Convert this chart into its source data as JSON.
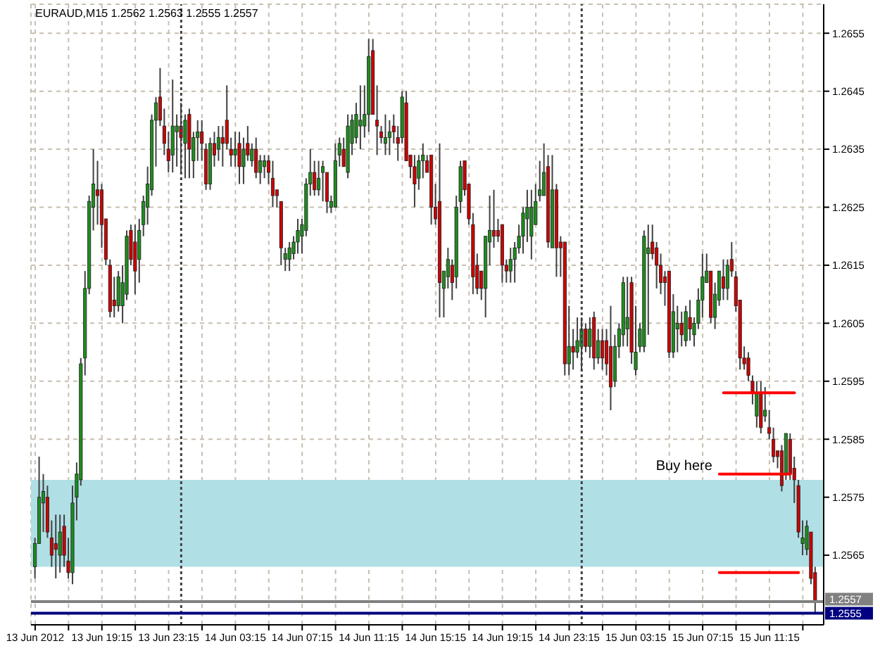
{
  "chart_data": {
    "type": "candlestick",
    "title": "EURAUD,M15 1.2562 1.2563 1.2555 1.2557",
    "x": [
      "2012-06-13T15:15",
      "2012-06-13T15:30",
      "2012-06-13T15:45",
      "2012-06-13T16:00",
      "2012-06-13T16:15",
      "2012-06-13T16:30",
      "2012-06-13T16:45",
      "2012-06-13T17:00",
      "2012-06-13T17:15",
      "2012-06-13T17:30",
      "2012-06-13T17:45",
      "2012-06-13T18:00",
      "2012-06-13T18:15",
      "2012-06-13T18:30",
      "2012-06-13T18:45",
      "2012-06-13T19:00",
      "2012-06-13T19:15",
      "2012-06-13T19:30",
      "2012-06-13T19:45",
      "2012-06-13T20:00",
      "2012-06-13T20:15",
      "2012-06-13T20:30",
      "2012-06-13T20:45",
      "2012-06-13T21:00",
      "2012-06-13T21:15",
      "2012-06-13T21:30",
      "2012-06-13T21:45",
      "2012-06-13T22:00",
      "2012-06-13T22:15",
      "2012-06-13T22:30",
      "2012-06-13T22:45",
      "2012-06-13T23:00",
      "2012-06-13T23:15",
      "2012-06-13T23:30",
      "2012-06-13T23:45",
      "2012-06-14T00:00",
      "2012-06-14T00:15",
      "2012-06-14T00:30",
      "2012-06-14T00:45",
      "2012-06-14T01:00",
      "2012-06-14T01:15",
      "2012-06-14T01:30",
      "2012-06-14T01:45",
      "2012-06-14T02:00",
      "2012-06-14T02:15",
      "2012-06-14T02:30",
      "2012-06-14T02:45",
      "2012-06-14T03:00",
      "2012-06-14T03:15",
      "2012-06-14T03:30",
      "2012-06-14T03:45",
      "2012-06-14T04:00",
      "2012-06-14T04:15",
      "2012-06-14T04:30",
      "2012-06-14T04:45",
      "2012-06-14T05:00",
      "2012-06-14T05:15",
      "2012-06-14T05:30",
      "2012-06-14T05:45",
      "2012-06-14T06:00",
      "2012-06-14T06:15",
      "2012-06-14T06:30",
      "2012-06-14T06:45",
      "2012-06-14T07:00",
      "2012-06-14T07:15",
      "2012-06-14T07:30",
      "2012-06-14T07:45",
      "2012-06-14T08:00",
      "2012-06-14T08:15",
      "2012-06-14T08:30",
      "2012-06-14T08:45",
      "2012-06-14T09:00",
      "2012-06-14T09:15",
      "2012-06-14T09:30",
      "2012-06-14T09:45",
      "2012-06-14T10:00",
      "2012-06-14T10:15",
      "2012-06-14T10:30",
      "2012-06-14T10:45",
      "2012-06-14T11:00",
      "2012-06-14T11:15",
      "2012-06-14T11:30",
      "2012-06-14T11:45",
      "2012-06-14T12:00",
      "2012-06-14T12:15",
      "2012-06-14T12:30",
      "2012-06-14T12:45",
      "2012-06-14T13:00",
      "2012-06-14T13:15",
      "2012-06-14T13:30",
      "2012-06-14T13:45",
      "2012-06-14T14:00",
      "2012-06-14T14:15",
      "2012-06-14T14:30",
      "2012-06-14T14:45",
      "2012-06-14T15:00",
      "2012-06-14T15:15",
      "2012-06-14T15:30",
      "2012-06-14T15:45",
      "2012-06-14T16:00",
      "2012-06-14T16:15",
      "2012-06-14T16:30",
      "2012-06-14T16:45",
      "2012-06-14T17:00",
      "2012-06-14T17:15",
      "2012-06-14T17:30",
      "2012-06-14T17:45",
      "2012-06-14T18:00",
      "2012-06-14T18:15",
      "2012-06-14T18:30",
      "2012-06-14T18:45",
      "2012-06-14T19:00",
      "2012-06-14T19:15",
      "2012-06-14T19:30",
      "2012-06-14T19:45",
      "2012-06-14T20:00",
      "2012-06-14T20:15",
      "2012-06-14T20:30",
      "2012-06-14T20:45",
      "2012-06-14T21:00",
      "2012-06-14T21:15",
      "2012-06-14T21:30",
      "2012-06-14T21:45",
      "2012-06-14T22:00",
      "2012-06-14T22:15",
      "2012-06-14T22:30",
      "2012-06-14T22:45",
      "2012-06-14T23:00",
      "2012-06-14T23:15",
      "2012-06-14T23:30",
      "2012-06-14T23:45",
      "2012-06-15T00:00",
      "2012-06-15T00:15",
      "2012-06-15T00:30",
      "2012-06-15T00:45",
      "2012-06-15T01:00",
      "2012-06-15T01:15",
      "2012-06-15T01:30",
      "2012-06-15T01:45",
      "2012-06-15T02:00",
      "2012-06-15T02:15",
      "2012-06-15T02:30",
      "2012-06-15T02:45",
      "2012-06-15T03:00",
      "2012-06-15T03:15",
      "2012-06-15T03:30",
      "2012-06-15T03:45",
      "2012-06-15T04:00",
      "2012-06-15T04:15",
      "2012-06-15T04:30",
      "2012-06-15T04:45",
      "2012-06-15T05:00",
      "2012-06-15T05:15",
      "2012-06-15T05:30",
      "2012-06-15T05:45",
      "2012-06-15T06:00",
      "2012-06-15T06:15",
      "2012-06-15T06:30",
      "2012-06-15T06:45",
      "2012-06-15T07:00",
      "2012-06-15T07:15",
      "2012-06-15T07:30",
      "2012-06-15T07:45",
      "2012-06-15T08:00",
      "2012-06-15T08:15",
      "2012-06-15T08:30",
      "2012-06-15T08:45",
      "2012-06-15T09:00",
      "2012-06-15T09:15",
      "2012-06-15T09:30",
      "2012-06-15T09:45",
      "2012-06-15T10:00",
      "2012-06-15T10:15",
      "2012-06-15T10:30",
      "2012-06-15T10:45",
      "2012-06-15T11:00",
      "2012-06-15T11:15",
      "2012-06-15T11:30",
      "2012-06-15T11:45",
      "2012-06-15T12:00",
      "2012-06-15T12:15",
      "2012-06-15T12:30",
      "2012-06-15T12:45",
      "2012-06-15T13:00",
      "2012-06-15T13:15",
      "2012-06-15T13:30",
      "2012-06-15T13:45",
      "2012-06-15T14:00"
    ],
    "ohlc": [
      [
        1.2563,
        1.2568,
        1.2561,
        1.2567
      ],
      [
        1.2567,
        1.2582,
        1.2567,
        1.2575
      ],
      [
        1.2574,
        1.2579,
        1.2569,
        1.2576
      ],
      [
        1.2575,
        1.2577,
        1.2568,
        1.2569
      ],
      [
        1.2568,
        1.2571,
        1.2563,
        1.2565
      ],
      [
        1.2567,
        1.2572,
        1.2561,
        1.2566
      ],
      [
        1.2565,
        1.2572,
        1.2562,
        1.2569
      ],
      [
        1.257,
        1.2572,
        1.2563,
        1.2565
      ],
      [
        1.2564,
        1.2568,
        1.2561,
        1.2562
      ],
      [
        1.2562,
        1.2577,
        1.256,
        1.2574
      ],
      [
        1.2575,
        1.2581,
        1.2571,
        1.2579
      ],
      [
        1.2578,
        1.2599,
        1.2577,
        1.2598
      ],
      [
        1.2599,
        1.2614,
        1.2596,
        1.2611
      ],
      [
        1.2611,
        1.2627,
        1.261,
        1.2626
      ],
      [
        1.2625,
        1.2635,
        1.2621,
        1.2629
      ],
      [
        1.2628,
        1.2633,
        1.2622,
        1.2627
      ],
      [
        1.2628,
        1.2629,
        1.2618,
        1.2622
      ],
      [
        1.2623,
        1.2623,
        1.2615,
        1.2616
      ],
      [
        1.2615,
        1.2616,
        1.2606,
        1.2607
      ],
      [
        1.2609,
        1.2613,
        1.2606,
        1.2608
      ],
      [
        1.2608,
        1.2614,
        1.2607,
        1.2613
      ],
      [
        1.2608,
        1.2615,
        1.2605,
        1.2612
      ],
      [
        1.261,
        1.2621,
        1.2609,
        1.262
      ],
      [
        1.2621,
        1.2622,
        1.2615,
        1.2616
      ],
      [
        1.2619,
        1.2622,
        1.261,
        1.2614
      ],
      [
        1.2616,
        1.2623,
        1.2612,
        1.2621
      ],
      [
        1.2622,
        1.2627,
        1.262,
        1.2626
      ],
      [
        1.2625,
        1.2632,
        1.2622,
        1.2629
      ],
      [
        1.2628,
        1.2641,
        1.2627,
        1.264
      ],
      [
        1.264,
        1.2644,
        1.2632,
        1.2643
      ],
      [
        1.2644,
        1.2649,
        1.2639,
        1.264
      ],
      [
        1.2639,
        1.2642,
        1.2634,
        1.2636
      ],
      [
        1.2635,
        1.2638,
        1.2631,
        1.2633
      ],
      [
        1.2634,
        1.2647,
        1.2631,
        1.2639
      ],
      [
        1.2638,
        1.2641,
        1.2632,
        1.2639
      ],
      [
        1.2639,
        1.2643,
        1.2631,
        1.2637
      ],
      [
        1.2636,
        1.2641,
        1.263,
        1.264
      ],
      [
        1.2641,
        1.2642,
        1.263,
        1.2635
      ],
      [
        1.2633,
        1.2638,
        1.263,
        1.2637
      ],
      [
        1.2637,
        1.264,
        1.2633,
        1.2638
      ],
      [
        1.2638,
        1.264,
        1.2633,
        1.2636
      ],
      [
        1.2635,
        1.2636,
        1.2628,
        1.2629
      ],
      [
        1.2629,
        1.2637,
        1.2628,
        1.2636
      ],
      [
        1.2636,
        1.2638,
        1.2632,
        1.2634
      ],
      [
        1.2635,
        1.2639,
        1.2633,
        1.2637
      ],
      [
        1.2637,
        1.2639,
        1.2632,
        1.2636
      ],
      [
        1.264,
        1.2646,
        1.2635,
        1.2636
      ],
      [
        1.2635,
        1.2637,
        1.2632,
        1.2634
      ],
      [
        1.2634,
        1.2638,
        1.2632,
        1.2635
      ],
      [
        1.2636,
        1.2638,
        1.2629,
        1.2632
      ],
      [
        1.2632,
        1.2637,
        1.2629,
        1.2635
      ],
      [
        1.2636,
        1.2639,
        1.2633,
        1.2634
      ],
      [
        1.2633,
        1.2636,
        1.2632,
        1.2635
      ],
      [
        1.2635,
        1.2637,
        1.263,
        1.2631
      ],
      [
        1.2631,
        1.2634,
        1.2629,
        1.2633
      ],
      [
        1.2632,
        1.2634,
        1.263,
        1.2633
      ],
      [
        1.2633,
        1.2634,
        1.2629,
        1.2631
      ],
      [
        1.263,
        1.2633,
        1.2625,
        1.2627
      ],
      [
        1.2628,
        1.2628,
        1.2625,
        1.2627
      ],
      [
        1.2626,
        1.2626,
        1.2615,
        1.2618
      ],
      [
        1.2616,
        1.2618,
        1.2614,
        1.2617
      ],
      [
        1.2616,
        1.2619,
        1.2614,
        1.2618
      ],
      [
        1.2617,
        1.262,
        1.2616,
        1.2619
      ],
      [
        1.2619,
        1.2623,
        1.2617,
        1.2621
      ],
      [
        1.262,
        1.2623,
        1.2617,
        1.2622
      ],
      [
        1.2621,
        1.263,
        1.262,
        1.2629
      ],
      [
        1.2629,
        1.2635,
        1.2627,
        1.2631
      ],
      [
        1.2631,
        1.2633,
        1.2627,
        1.2628
      ],
      [
        1.2628,
        1.2633,
        1.2627,
        1.263
      ],
      [
        1.2631,
        1.2633,
        1.2626,
        1.2632
      ],
      [
        1.2631,
        1.2631,
        1.2624,
        1.2626
      ],
      [
        1.2625,
        1.2627,
        1.2624,
        1.2626
      ],
      [
        1.2625,
        1.2636,
        1.2625,
        1.2633
      ],
      [
        1.2634,
        1.2637,
        1.2632,
        1.2636
      ],
      [
        1.2635,
        1.2637,
        1.2632,
        1.2632
      ],
      [
        1.2631,
        1.2641,
        1.263,
        1.2639
      ],
      [
        1.2636,
        1.2641,
        1.2634,
        1.264
      ],
      [
        1.2637,
        1.2643,
        1.2636,
        1.2641
      ],
      [
        1.2639,
        1.2646,
        1.2635,
        1.264
      ],
      [
        1.2639,
        1.2646,
        1.2637,
        1.2641
      ],
      [
        1.2641,
        1.2654,
        1.2638,
        1.2651
      ],
      [
        1.2652,
        1.2654,
        1.2641,
        1.2641
      ],
      [
        1.264,
        1.2646,
        1.2634,
        1.2639
      ],
      [
        1.2638,
        1.2639,
        1.2636,
        1.2637
      ],
      [
        1.2636,
        1.2641,
        1.2634,
        1.2637
      ],
      [
        1.2637,
        1.264,
        1.2634,
        1.2638
      ],
      [
        1.2639,
        1.2641,
        1.2636,
        1.2638
      ],
      [
        1.2637,
        1.2639,
        1.2633,
        1.2636
      ],
      [
        1.2637,
        1.2645,
        1.2636,
        1.2644
      ],
      [
        1.2643,
        1.2645,
        1.2633,
        1.2633
      ],
      [
        1.2634,
        1.2634,
        1.263,
        1.2632
      ],
      [
        1.2632,
        1.2634,
        1.2625,
        1.2629
      ],
      [
        1.263,
        1.2634,
        1.2628,
        1.2633
      ],
      [
        1.2633,
        1.2636,
        1.263,
        1.2634
      ],
      [
        1.2633,
        1.2634,
        1.2631,
        1.2631
      ],
      [
        1.2634,
        1.2634,
        1.2622,
        1.2625
      ],
      [
        1.2625,
        1.2629,
        1.2622,
        1.2623
      ],
      [
        1.2626,
        1.2636,
        1.2606,
        1.2612
      ],
      [
        1.2611,
        1.2614,
        1.2606,
        1.2614
      ],
      [
        1.2613,
        1.2618,
        1.2611,
        1.2616
      ],
      [
        1.2615,
        1.2616,
        1.2609,
        1.2612
      ],
      [
        1.2613,
        1.2627,
        1.2611,
        1.2625
      ],
      [
        1.2626,
        1.2633,
        1.2624,
        1.2632
      ],
      [
        1.2633,
        1.2633,
        1.2627,
        1.2628
      ],
      [
        1.2629,
        1.2629,
        1.2622,
        1.2623
      ],
      [
        1.2622,
        1.2624,
        1.261,
        1.2613
      ],
      [
        1.2615,
        1.2617,
        1.261,
        1.2611
      ],
      [
        1.2614,
        1.2614,
        1.2609,
        1.2611
      ],
      [
        1.2611,
        1.262,
        1.2606,
        1.262
      ],
      [
        1.2619,
        1.2627,
        1.2615,
        1.2621
      ],
      [
        1.2621,
        1.2628,
        1.2618,
        1.262
      ],
      [
        1.2621,
        1.2623,
        1.2619,
        1.262
      ],
      [
        1.2622,
        1.2622,
        1.2612,
        1.2615
      ],
      [
        1.2615,
        1.2616,
        1.2612,
        1.2614
      ],
      [
        1.2614,
        1.2618,
        1.2612,
        1.2616
      ],
      [
        1.2616,
        1.2619,
        1.2612,
        1.2618
      ],
      [
        1.2618,
        1.2622,
        1.2617,
        1.262
      ],
      [
        1.262,
        1.2625,
        1.2617,
        1.2624
      ],
      [
        1.2623,
        1.2628,
        1.2619,
        1.2625
      ],
      [
        1.262,
        1.2628,
        1.2616,
        1.2625
      ],
      [
        1.2622,
        1.2629,
        1.2622,
        1.2626
      ],
      [
        1.2627,
        1.2633,
        1.2626,
        1.2628
      ],
      [
        1.2627,
        1.2636,
        1.2627,
        1.2631
      ],
      [
        1.2632,
        1.2634,
        1.2618,
        1.2619
      ],
      [
        1.2618,
        1.2634,
        1.2618,
        1.2628
      ],
      [
        1.2628,
        1.2629,
        1.2613,
        1.2618
      ],
      [
        1.2619,
        1.262,
        1.2613,
        1.2618
      ],
      [
        1.2619,
        1.2619,
        1.2596,
        1.2598
      ],
      [
        1.2598,
        1.2608,
        1.2596,
        1.2601
      ],
      [
        1.2601,
        1.2604,
        1.2597,
        1.26
      ],
      [
        1.26,
        1.2606,
        1.2599,
        1.2602
      ],
      [
        1.2601,
        1.2606,
        1.2597,
        1.2604
      ],
      [
        1.2604,
        1.2605,
        1.26,
        1.2601
      ],
      [
        1.2601,
        1.2606,
        1.2599,
        1.2604
      ],
      [
        1.2606,
        1.2607,
        1.2597,
        1.2599
      ],
      [
        1.2599,
        1.2604,
        1.2598,
        1.2602
      ],
      [
        1.2602,
        1.2604,
        1.2597,
        1.2599
      ],
      [
        1.2602,
        1.2604,
        1.2596,
        1.2598
      ],
      [
        1.2601,
        1.2608,
        1.259,
        1.2594
      ],
      [
        1.2595,
        1.2603,
        1.2594,
        1.2601
      ],
      [
        1.2601,
        1.2605,
        1.2599,
        1.2604
      ],
      [
        1.2603,
        1.2613,
        1.2601,
        1.2612
      ],
      [
        1.2604,
        1.2613,
        1.2601,
        1.2606
      ],
      [
        1.2612,
        1.2613,
        1.2598,
        1.26
      ],
      [
        1.2597,
        1.2608,
        1.2596,
        1.26
      ],
      [
        1.2601,
        1.2605,
        1.26,
        1.2604
      ],
      [
        1.2601,
        1.2621,
        1.26,
        1.262
      ],
      [
        1.2617,
        1.2622,
        1.2603,
        1.2618
      ],
      [
        1.2619,
        1.2622,
        1.2616,
        1.2617
      ],
      [
        1.2618,
        1.2619,
        1.2611,
        1.2615
      ],
      [
        1.2615,
        1.2617,
        1.261,
        1.2612
      ],
      [
        1.2613,
        1.2614,
        1.2608,
        1.2612
      ],
      [
        1.2614,
        1.2614,
        1.2599,
        1.26
      ],
      [
        1.26,
        1.261,
        1.2599,
        1.2607
      ],
      [
        1.2604,
        1.2608,
        1.26,
        1.2605
      ],
      [
        1.2605,
        1.2607,
        1.2601,
        1.2603
      ],
      [
        1.2602,
        1.2608,
        1.2601,
        1.2607
      ],
      [
        1.2606,
        1.2609,
        1.2602,
        1.2604
      ],
      [
        1.2603,
        1.2606,
        1.2601,
        1.2605
      ],
      [
        1.2605,
        1.2611,
        1.2604,
        1.2609
      ],
      [
        1.2609,
        1.2617,
        1.2606,
        1.2613
      ],
      [
        1.2612,
        1.2617,
        1.2612,
        1.2614
      ],
      [
        1.2614,
        1.2614,
        1.2605,
        1.2606
      ],
      [
        1.2606,
        1.2612,
        1.2604,
        1.261
      ],
      [
        1.2609,
        1.2614,
        1.2608,
        1.2614
      ],
      [
        1.2613,
        1.2616,
        1.2609,
        1.2611
      ],
      [
        1.2611,
        1.2616,
        1.2609,
        1.2615
      ],
      [
        1.2616,
        1.2619,
        1.2613,
        1.2614
      ],
      [
        1.2613,
        1.2614,
        1.2607,
        1.2608
      ],
      [
        1.2609,
        1.2609,
        1.2597,
        1.2599
      ],
      [
        1.2599,
        1.2601,
        1.2597,
        1.2598
      ],
      [
        1.2599,
        1.26,
        1.2595,
        1.2596
      ],
      [
        1.2595,
        1.2596,
        1.2591,
        1.2593
      ],
      [
        1.2589,
        1.2595,
        1.2587,
        1.2593
      ],
      [
        1.2593,
        1.2595,
        1.2586,
        1.2587
      ],
      [
        1.2589,
        1.2594,
        1.2588,
        1.259
      ],
      [
        1.2587,
        1.259,
        1.2585,
        1.2586
      ],
      [
        1.2585,
        1.2587,
        1.2581,
        1.2582
      ],
      [
        1.2583,
        1.2583,
        1.258,
        1.2582
      ],
      [
        1.2583,
        1.2584,
        1.2576,
        1.2577
      ],
      [
        1.2579,
        1.2586,
        1.2578,
        1.2586
      ],
      [
        1.2585,
        1.2586,
        1.2578,
        1.2579
      ],
      [
        1.258,
        1.2582,
        1.2574,
        1.2578
      ],
      [
        1.2577,
        1.2578,
        1.2568,
        1.2569
      ],
      [
        1.2567,
        1.2571,
        1.2565,
        1.2568
      ],
      [
        1.2566,
        1.2571,
        1.2565,
        1.257
      ],
      [
        1.2569,
        1.2569,
        1.256,
        1.2561
      ],
      [
        1.2562,
        1.2563,
        1.2555,
        1.2557
      ]
    ],
    "colors": [
      "#1e8c1e",
      "#1e8c1e",
      "#1e8c1e",
      "#cc0000",
      "#cc0000",
      "#cc0000",
      "#1e8c1e",
      "#cc0000",
      "#cc0000",
      "#1e8c1e",
      "#1e8c1e",
      "#1e8c1e",
      "#1e8c1e",
      "#1e8c1e",
      "#1e8c1e",
      "#cc0000",
      "#cc0000",
      "#cc0000",
      "#cc0000",
      "#cc0000",
      "#1e8c1e",
      "#1e8c1e",
      "#1e8c1e",
      "#cc0000",
      "#cc0000",
      "#1e8c1e",
      "#1e8c1e",
      "#1e8c1e",
      "#1e8c1e",
      "#1e8c1e",
      "#cc0000",
      "#cc0000",
      "#cc0000",
      "#1e8c1e",
      "#1e8c1e",
      "#cc0000",
      "#1e8c1e",
      "#cc0000",
      "#1e8c1e",
      "#1e8c1e",
      "#cc0000",
      "#cc0000",
      "#1e8c1e",
      "#cc0000",
      "#1e8c1e",
      "#cc0000",
      "#cc0000",
      "#cc0000",
      "#1e8c1e",
      "#cc0000",
      "#1e8c1e",
      "#cc0000",
      "#1e8c1e",
      "#cc0000",
      "#1e8c1e",
      "#1e8c1e",
      "#cc0000",
      "#cc0000",
      "#cc0000",
      "#cc0000",
      "#1e8c1e",
      "#1e8c1e",
      "#1e8c1e",
      "#1e8c1e",
      "#1e8c1e",
      "#1e8c1e",
      "#1e8c1e",
      "#cc0000",
      "#1e8c1e",
      "#1e8c1e",
      "#cc0000",
      "#1e8c1e",
      "#1e8c1e",
      "#1e8c1e",
      "#cc0000",
      "#1e8c1e",
      "#1e8c1e",
      "#1e8c1e",
      "#1e8c1e",
      "#1e8c1e",
      "#1e8c1e",
      "#cc0000",
      "#cc0000",
      "#cc0000",
      "#1e8c1e",
      "#1e8c1e",
      "#cc0000",
      "#cc0000",
      "#1e8c1e",
      "#cc0000",
      "#cc0000",
      "#cc0000",
      "#1e8c1e",
      "#1e8c1e",
      "#cc0000",
      "#cc0000",
      "#cc0000",
      "#cc0000",
      "#1e8c1e",
      "#1e8c1e",
      "#cc0000",
      "#1e8c1e",
      "#1e8c1e",
      "#cc0000",
      "#cc0000",
      "#cc0000",
      "#cc0000",
      "#cc0000",
      "#1e8c1e",
      "#1e8c1e",
      "#cc0000",
      "#cc0000",
      "#cc0000",
      "#cc0000",
      "#1e8c1e",
      "#1e8c1e",
      "#1e8c1e",
      "#1e8c1e",
      "#1e8c1e",
      "#1e8c1e",
      "#1e8c1e",
      "#1e8c1e",
      "#1e8c1e",
      "#cc0000",
      "#1e8c1e",
      "#cc0000",
      "#cc0000",
      "#cc0000",
      "#1e8c1e",
      "#cc0000",
      "#1e8c1e",
      "#1e8c1e",
      "#cc0000",
      "#1e8c1e",
      "#cc0000",
      "#1e8c1e",
      "#cc0000",
      "#cc0000",
      "#cc0000",
      "#1e8c1e",
      "#1e8c1e",
      "#1e8c1e",
      "#1e8c1e",
      "#cc0000",
      "#1e8c1e",
      "#1e8c1e",
      "#1e8c1e",
      "#1e8c1e",
      "#cc0000",
      "#cc0000",
      "#cc0000",
      "#cc0000",
      "#cc0000",
      "#1e8c1e",
      "#1e8c1e",
      "#cc0000",
      "#1e8c1e",
      "#cc0000",
      "#1e8c1e",
      "#1e8c1e",
      "#1e8c1e",
      "#1e8c1e",
      "#cc0000",
      "#1e8c1e",
      "#1e8c1e",
      "#cc0000",
      "#1e8c1e",
      "#cc0000",
      "#cc0000",
      "#cc0000",
      "#cc0000",
      "#cc0000",
      "#cc0000",
      "#1e8c1e",
      "#cc0000",
      "#1e8c1e",
      "#cc0000",
      "#cc0000",
      "#cc0000",
      "#cc0000",
      "#1e8c1e",
      "#cc0000",
      "#cc0000",
      "#cc0000",
      "#1e8c1e",
      "#1e8c1e",
      "#cc0000",
      "#cc0000"
    ],
    "series": [
      {
        "type": "line",
        "color": "#ff0000",
        "x": [
          "2012-06-15T08:30",
          "2012-06-15T12:45"
        ],
        "values": [
          1.2593,
          1.2593
        ]
      },
      {
        "type": "line",
        "color": "#ff0000",
        "x": [
          "2012-06-15T08:15",
          "2012-06-15T12:30"
        ],
        "values": [
          1.2579,
          1.2579
        ]
      },
      {
        "type": "line",
        "color": "#ff0000",
        "x": [
          "2012-06-15T08:15",
          "2012-06-15T13:00"
        ],
        "values": [
          1.2562,
          1.2562
        ]
      }
    ],
    "annotations": [
      {
        "text": "Buy here",
        "x": "2012-06-15T08:15",
        "y": 1.2579
      }
    ],
    "bands": [
      {
        "axis": "y",
        "from": 1.2563,
        "to": 1.2578,
        "color": "#b0e0e6"
      }
    ],
    "ref_lines": [
      {
        "axis": "x",
        "value": "2012-06-14T00:00",
        "color": "#404040",
        "line_style": "dotted"
      },
      {
        "axis": "x",
        "value": "2012-06-15T00:00",
        "color": "#404040",
        "line_style": "dotted"
      },
      {
        "axis": "y",
        "value": 1.2557,
        "label": "1.2557",
        "color": "#808080"
      },
      {
        "axis": "y",
        "value": 1.2555,
        "label": "1.2555",
        "color": "#000080"
      }
    ],
    "xlim": [
      "2012-06-13T15:00",
      "2012-06-15T14:30"
    ],
    "xticks": [
      {
        "value": "2012-06-13T15:15",
        "label": "13 Jun 2012"
      },
      {
        "value": "2012-06-13T17:15",
        "label": null
      },
      {
        "value": "2012-06-13T19:15",
        "label": "13 Jun 19:15"
      },
      {
        "value": "2012-06-13T21:15",
        "label": null
      },
      {
        "value": "2012-06-13T23:15",
        "label": "13 Jun 23:15"
      },
      {
        "value": "2012-06-14T01:15",
        "label": null
      },
      {
        "value": "2012-06-14T03:15",
        "label": "14 Jun 03:15"
      },
      {
        "value": "2012-06-14T05:15",
        "label": null
      },
      {
        "value": "2012-06-14T07:15",
        "label": "14 Jun 07:15"
      },
      {
        "value": "2012-06-14T09:15",
        "label": null
      },
      {
        "value": "2012-06-14T11:15",
        "label": "14 Jun 11:15"
      },
      {
        "value": "2012-06-14T13:15",
        "label": null
      },
      {
        "value": "2012-06-14T15:15",
        "label": "14 Jun 15:15"
      },
      {
        "value": "2012-06-14T17:15",
        "label": null
      },
      {
        "value": "2012-06-14T19:15",
        "label": "14 Jun 19:15"
      },
      {
        "value": "2012-06-14T21:15",
        "label": null
      },
      {
        "value": "2012-06-14T23:15",
        "label": "14 Jun 23:15"
      },
      {
        "value": "2012-06-15T01:15",
        "label": null
      },
      {
        "value": "2012-06-15T03:15",
        "label": "15 Jun 03:15"
      },
      {
        "value": "2012-06-15T05:15",
        "label": null
      },
      {
        "value": "2012-06-15T07:15",
        "label": "15 Jun 07:15"
      },
      {
        "value": "2012-06-15T09:15",
        "label": null
      },
      {
        "value": "2012-06-15T11:15",
        "label": "15 Jun 11:15"
      },
      {
        "value": "2012-06-15T13:15",
        "label": null
      }
    ],
    "ylim": [
      1.2553,
      1.266
    ],
    "yticks": [
      1.2565,
      1.2575,
      1.2585,
      1.2595,
      1.2605,
      1.2615,
      1.2625,
      1.2635,
      1.2645,
      1.2655
    ],
    "grid": true
  }
}
